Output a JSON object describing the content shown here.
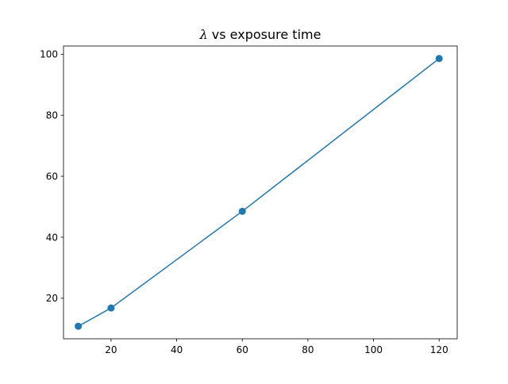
{
  "chart_data": {
    "type": "line",
    "title": {
      "symbol": "λ",
      "text": " vs exposure time"
    },
    "xlabel": "",
    "ylabel": "",
    "x": [
      10,
      20,
      60,
      120
    ],
    "series": [
      {
        "values": [
          10.8,
          16.8,
          48.5,
          98.6
        ],
        "color": "#1f77b4",
        "marker": "circle"
      }
    ],
    "xlim": [
      5.5,
      125.5
    ],
    "ylim": [
      6.7,
      102.7
    ],
    "xticks": [
      20,
      40,
      60,
      80,
      100,
      120
    ],
    "yticks": [
      20,
      40,
      60,
      80,
      100
    ],
    "grid": false,
    "legend": "none"
  }
}
